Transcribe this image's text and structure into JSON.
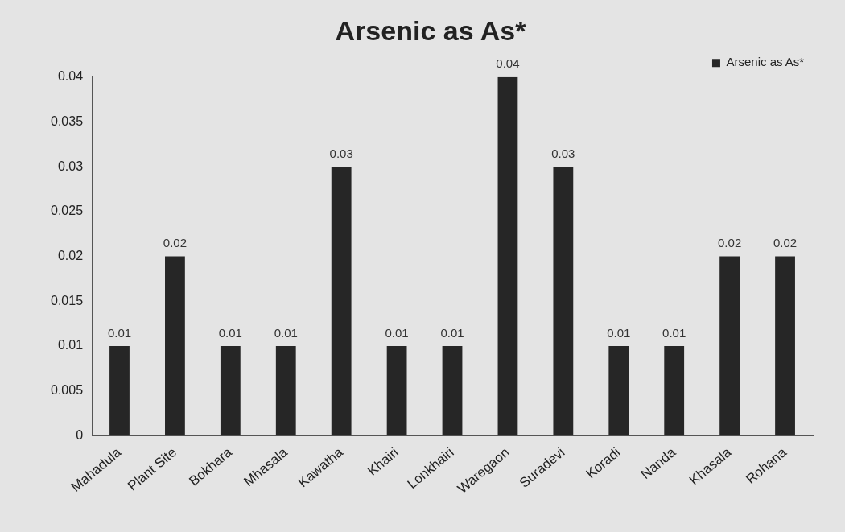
{
  "chart_data": {
    "type": "bar",
    "title": "Arsenic as As*",
    "categories": [
      "Mahadula",
      "Plant Site",
      "Bokhara",
      "Mhasala",
      "Kawatha",
      "Khairi",
      "Lonkhairi",
      "Waregaon",
      "Suradevi",
      "Koradi",
      "Nanda",
      "Khasala",
      "Rohana"
    ],
    "series": [
      {
        "name": "Arsenic as As*",
        "color": "#262626",
        "values": [
          0.01,
          0.02,
          0.01,
          0.01,
          0.03,
          0.01,
          0.01,
          0.04,
          0.03,
          0.01,
          0.01,
          0.02,
          0.02
        ]
      }
    ],
    "ylim": [
      0,
      0.04
    ],
    "yticks": [
      0,
      0.005,
      0.01,
      0.015,
      0.02,
      0.025,
      0.03,
      0.035,
      0.04
    ],
    "grid": false,
    "legend": "top right",
    "data_labels": true
  }
}
